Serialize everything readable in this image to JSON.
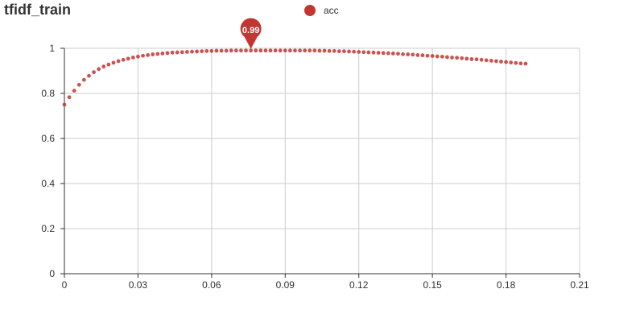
{
  "chart_data": {
    "type": "scatter",
    "title": "tfidf_train",
    "xlabel": "",
    "ylabel": "",
    "xlim": [
      0,
      0.21
    ],
    "ylim": [
      0,
      1
    ],
    "x_ticks": [
      "0",
      "0.03",
      "0.06",
      "0.09",
      "0.12",
      "0.15",
      "0.18",
      "0.21"
    ],
    "y_ticks": [
      "0",
      "0.2",
      "0.4",
      "0.6",
      "0.8",
      "1"
    ],
    "grid": true,
    "legend_position": "top-center",
    "series": [
      {
        "name": "acc",
        "color": "#c23531",
        "x_start": 0,
        "x_step": 0.002,
        "values": [
          0.75,
          0.783,
          0.812,
          0.838,
          0.86,
          0.878,
          0.894,
          0.908,
          0.919,
          0.928,
          0.936,
          0.943,
          0.949,
          0.954,
          0.959,
          0.963,
          0.967,
          0.97,
          0.973,
          0.975,
          0.977,
          0.979,
          0.981,
          0.982,
          0.983,
          0.984,
          0.985,
          0.986,
          0.987,
          0.988,
          0.988,
          0.989,
          0.989,
          0.989,
          0.99,
          0.99,
          0.99,
          0.99,
          0.99,
          0.99,
          0.99,
          0.99,
          0.99,
          0.99,
          0.99,
          0.99,
          0.99,
          0.99,
          0.99,
          0.99,
          0.99,
          0.99,
          0.989,
          0.989,
          0.988,
          0.988,
          0.987,
          0.987,
          0.986,
          0.985,
          0.984,
          0.983,
          0.982,
          0.981,
          0.98,
          0.979,
          0.978,
          0.977,
          0.976,
          0.974,
          0.973,
          0.972,
          0.97,
          0.969,
          0.967,
          0.966,
          0.964,
          0.963,
          0.961,
          0.959,
          0.958,
          0.956,
          0.954,
          0.952,
          0.951,
          0.949,
          0.947,
          0.945,
          0.943,
          0.941,
          0.939,
          0.937,
          0.935,
          0.933,
          0.932
        ]
      }
    ],
    "max_marker": {
      "label": "0.99",
      "x": 0.076,
      "y": 0.99
    }
  }
}
